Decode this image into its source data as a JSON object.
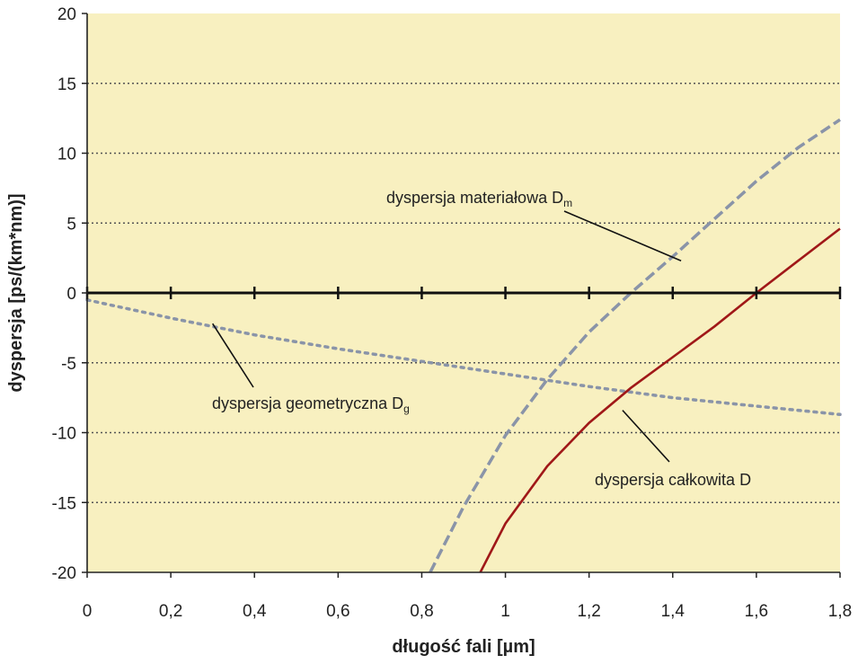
{
  "chart_data": {
    "type": "line",
    "title": "",
    "xlabel": "długość fali [µm]",
    "ylabel": "dyspersja [ps/(km*nm)]",
    "xlim": [
      0,
      1.8
    ],
    "ylim": [
      -20,
      20
    ],
    "x_ticks": [
      "0",
      "0,2",
      "0,4",
      "0,6",
      "0,8",
      "1",
      "1,2",
      "1,4",
      "1,6",
      "1,8"
    ],
    "y_ticks": [
      "20",
      "15",
      "10",
      "5",
      "0",
      "-5",
      "-10",
      "-15",
      "-20"
    ],
    "grid": "horizontal dotted",
    "plot_background": "#f8f0c0",
    "series": [
      {
        "name": "dyspersja materiałowa",
        "subscript": "m",
        "style": "dashed",
        "color": "#8a94a8",
        "x": [
          0.82,
          0.9,
          1.0,
          1.1,
          1.2,
          1.3,
          1.4,
          1.5,
          1.6,
          1.7,
          1.8
        ],
        "y": [
          -20.0,
          -15.3,
          -10.2,
          -6.2,
          -2.8,
          0.0,
          2.6,
          5.3,
          8.0,
          10.4,
          12.4
        ]
      },
      {
        "name": "dyspersja geometryczna",
        "subscript": "g",
        "style": "dotted",
        "color": "#8a94a8",
        "x": [
          0.0,
          0.2,
          0.4,
          0.6,
          0.8,
          1.0,
          1.2,
          1.4,
          1.6,
          1.8
        ],
        "y": [
          -0.5,
          -1.8,
          -3.0,
          -4.0,
          -4.9,
          -5.8,
          -6.7,
          -7.5,
          -8.1,
          -8.7
        ]
      },
      {
        "name": "dyspersja całkowita D",
        "subscript": "",
        "style": "solid",
        "color": "#a01818",
        "x": [
          0.94,
          1.0,
          1.1,
          1.2,
          1.3,
          1.4,
          1.5,
          1.6,
          1.7,
          1.8
        ],
        "y": [
          -20.0,
          -16.5,
          -12.4,
          -9.3,
          -6.8,
          -4.6,
          -2.4,
          0.0,
          2.3,
          4.6
        ]
      }
    ],
    "annotations": [
      {
        "text": "dyspersja materiałowa D",
        "sub": "m",
        "series": 0
      },
      {
        "text": "dyspersja geometryczna D",
        "sub": "g",
        "series": 1
      },
      {
        "text": "dyspersja całkowita D",
        "sub": "",
        "series": 2
      }
    ]
  }
}
